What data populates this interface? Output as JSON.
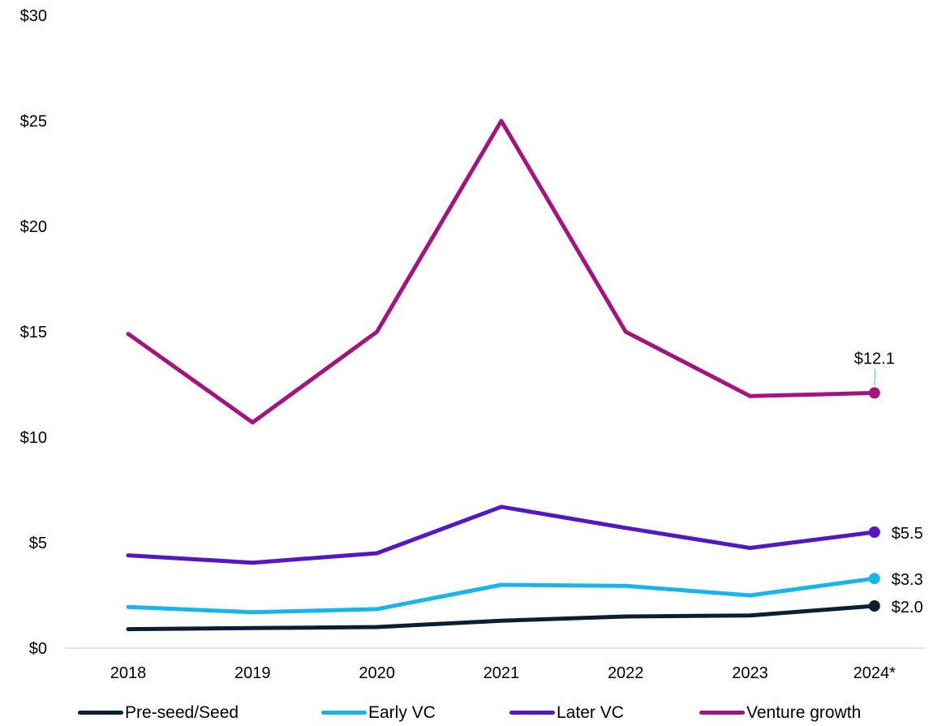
{
  "chart_data": {
    "type": "line",
    "title": "",
    "xlabel": "",
    "ylabel": "",
    "categories": [
      "2018",
      "2019",
      "2020",
      "2021",
      "2022",
      "2023",
      "2024*"
    ],
    "ylim": [
      0,
      30
    ],
    "yticks": [
      0,
      5,
      10,
      15,
      20,
      25,
      30
    ],
    "ytick_labels": [
      "$0",
      "$5",
      "$10",
      "$15",
      "$20",
      "$25",
      "$30"
    ],
    "grid": false,
    "legend_position": "bottom",
    "series": [
      {
        "name": "Pre-seed/Seed",
        "color": "#0b1f33",
        "values": [
          0.9,
          0.95,
          1.0,
          1.3,
          1.5,
          1.55,
          2.0
        ],
        "end_label": "$2.0"
      },
      {
        "name": "Early VC",
        "color": "#19b4ec",
        "values": [
          1.95,
          1.7,
          1.85,
          3.0,
          2.95,
          2.5,
          3.3
        ],
        "end_label": "$3.3"
      },
      {
        "name": "Later VC",
        "color": "#5517c2",
        "values": [
          4.4,
          4.05,
          4.5,
          6.7,
          5.7,
          4.75,
          5.5
        ],
        "end_label": "$5.5"
      },
      {
        "name": "Venture growth",
        "color": "#a3147f",
        "values": [
          14.9,
          10.7,
          15.0,
          25.0,
          15.0,
          11.95,
          12.1
        ],
        "end_label": "$12.1"
      }
    ]
  }
}
